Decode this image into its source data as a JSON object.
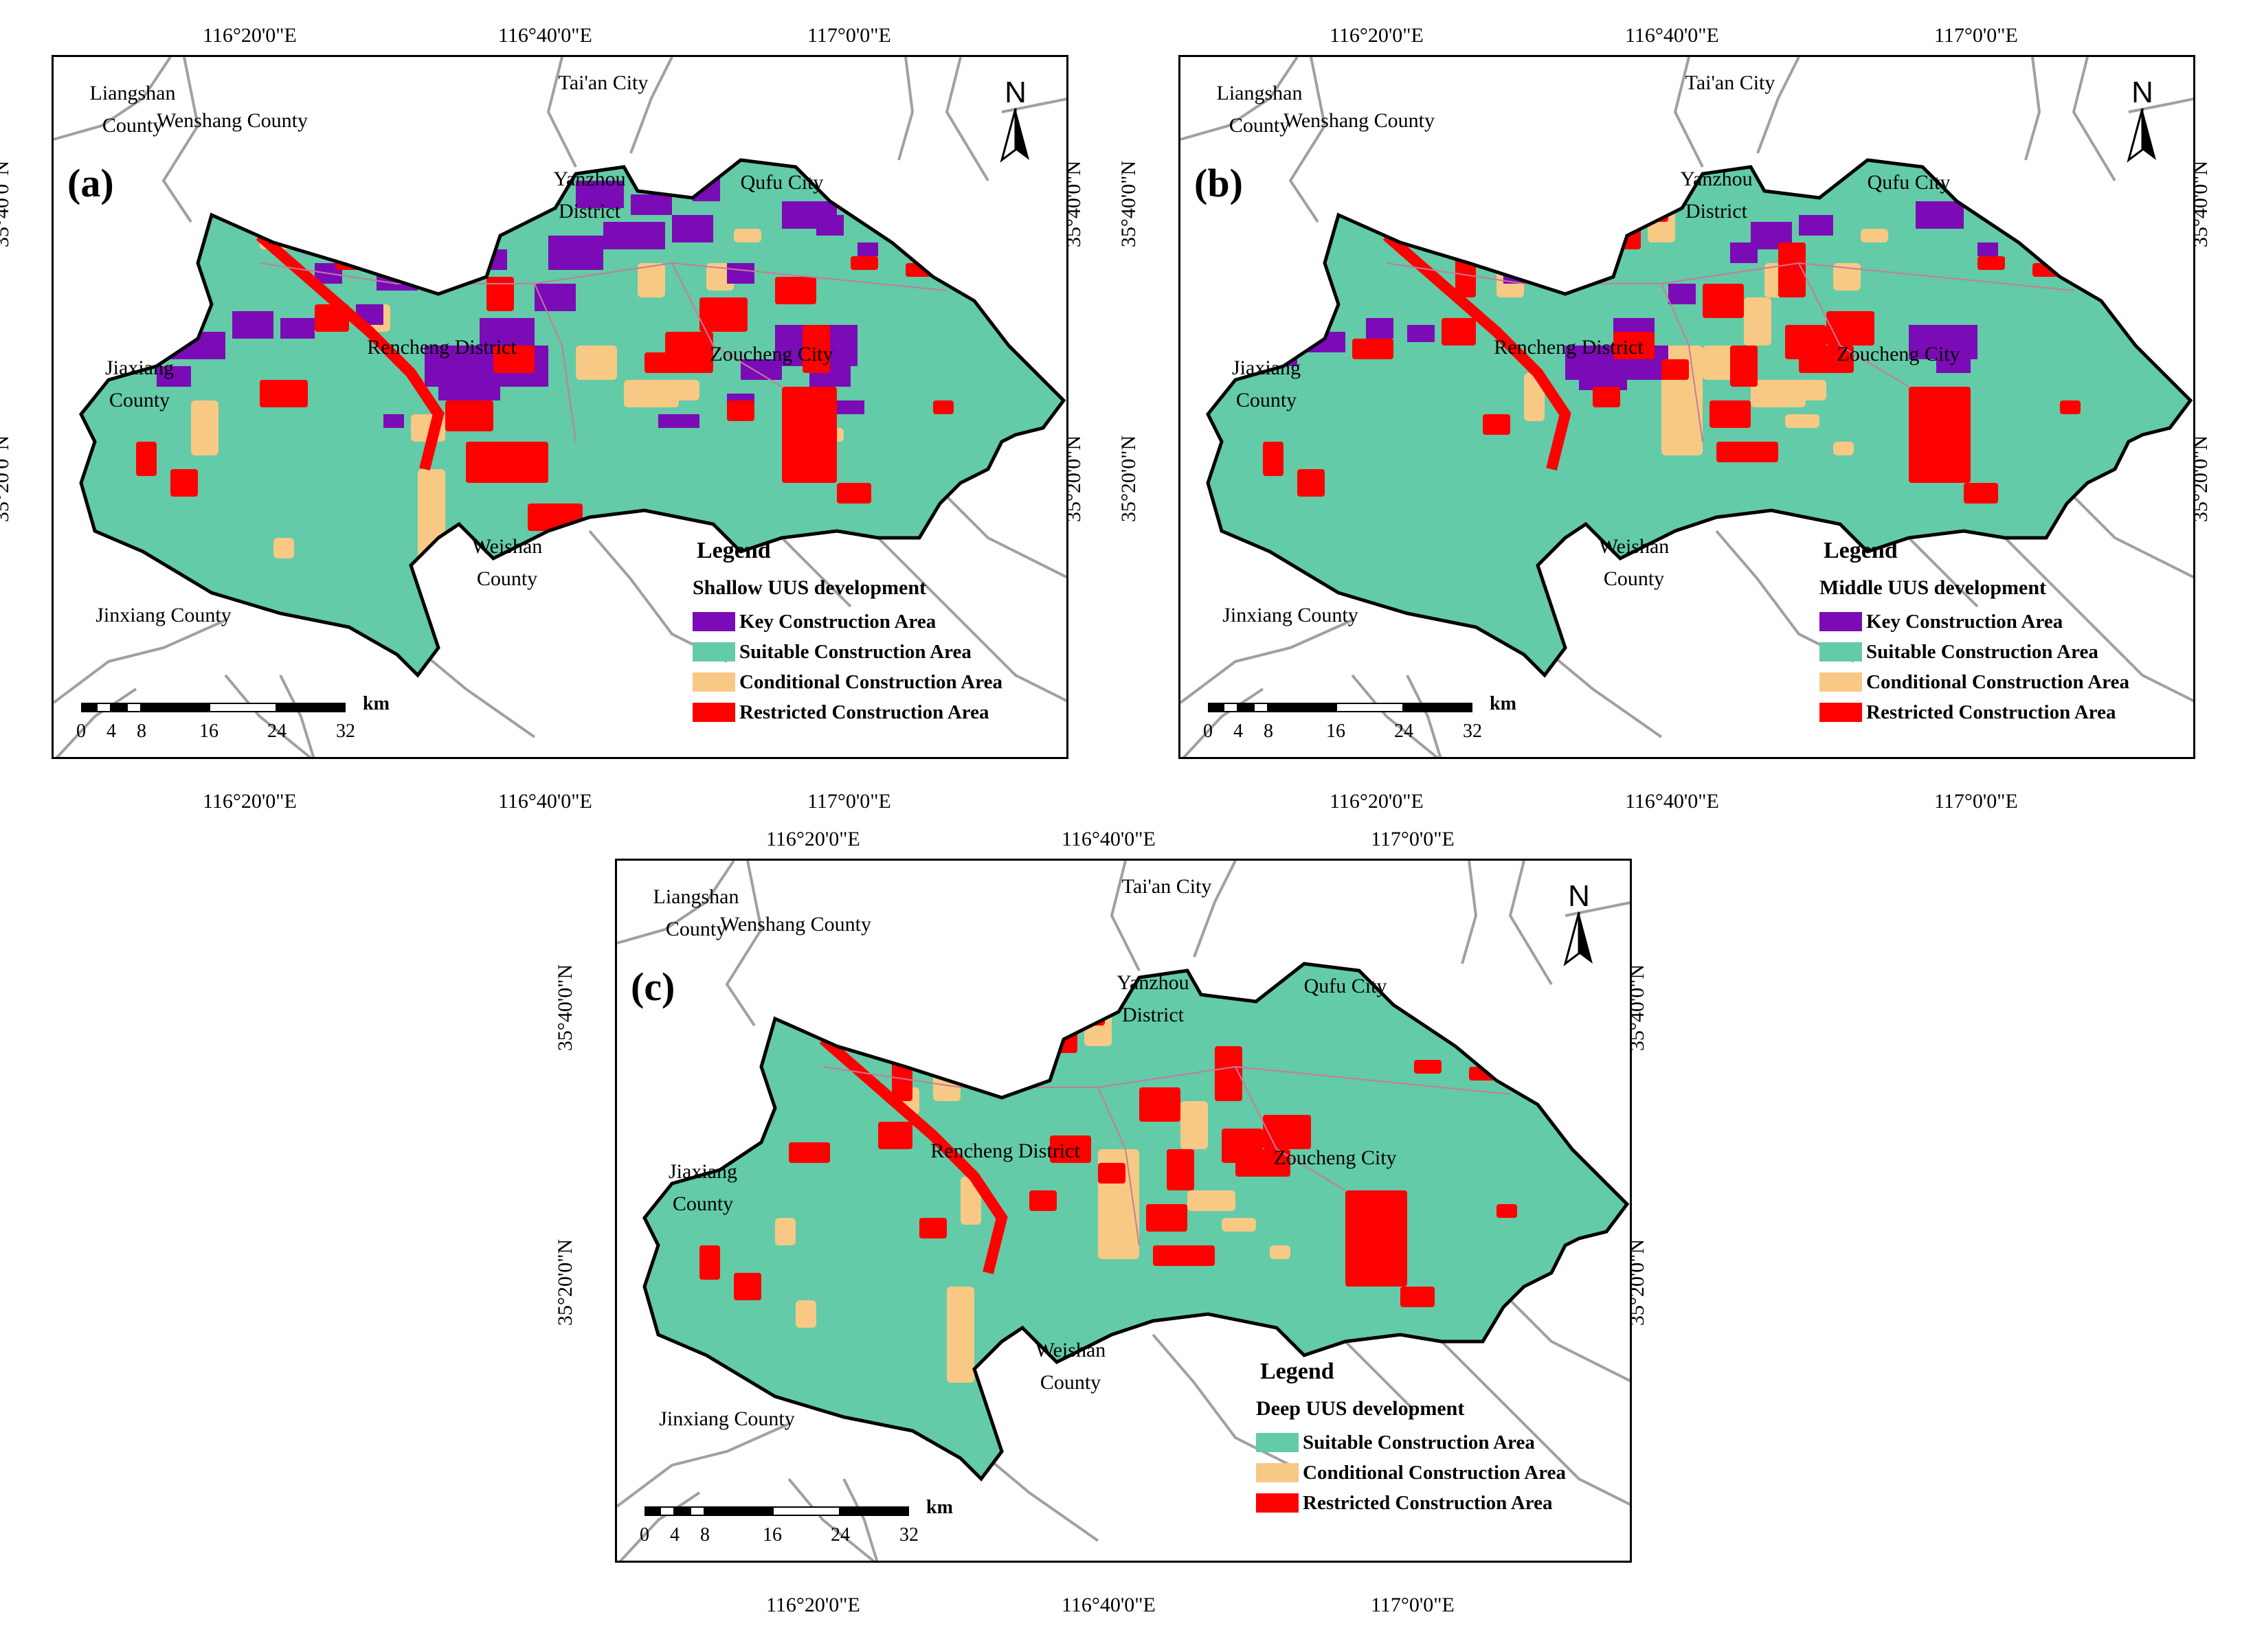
{
  "colors": {
    "key": "#7b0bb6",
    "suitable": "#63cba7",
    "conditional": "#f8c985",
    "restricted": "#ff0000",
    "road": "#a0a0a0",
    "boundary": "#000000"
  },
  "axes": {
    "top_ticks": [
      "116°20'0\"E",
      "116°40'0\"E",
      "117°0'0\"E"
    ],
    "left_ticks": [
      "35°40'0\"N",
      "35°20'0\"N"
    ]
  },
  "place_names": {
    "liangshan": "Liangshan County",
    "wenshang": "Wenshang County",
    "taian": "Tai'an City",
    "yanzhou": "Yanzhou District",
    "qufu": "Qufu City",
    "rencheng": "Rencheng District",
    "zoucheng": "Zoucheng City",
    "jiaxiang": "Jiaxiang County",
    "weishan": "Weishan County",
    "jinxiang": "Jinxiang County"
  },
  "scale_bar": {
    "ticks": [
      "0",
      "4",
      "8",
      "16",
      "24",
      "32"
    ],
    "unit": "km"
  },
  "north_label": "N",
  "legend_title": "Legend",
  "legend_items": {
    "key": "Key Construction Area",
    "suitable": "Suitable Construction Area",
    "conditional": "Conditional Construction Area",
    "restricted": "Restricted Construction Area"
  },
  "panels": [
    {
      "label": "(a)",
      "subtitle": "Shallow UUS development",
      "show_key": true
    },
    {
      "label": "(b)",
      "subtitle": "Middle UUS development",
      "show_key": true
    },
    {
      "label": "(c)",
      "subtitle": "Deep UUS development",
      "show_key": false
    }
  ]
}
